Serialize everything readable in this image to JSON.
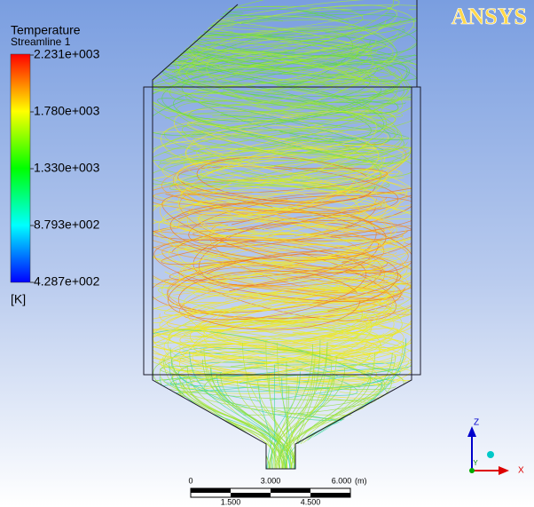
{
  "legend": {
    "title": "Temperature",
    "subtitle": "Streamline 1",
    "labels": [
      "2.231e+003",
      "1.780e+003",
      "1.330e+003",
      "8.793e+002",
      "4.287e+002"
    ],
    "unit": "[K]"
  },
  "logo": "ANSYS",
  "scale_bar": {
    "top_labels": [
      "0",
      "3.000",
      "6.000"
    ],
    "unit": "(m)",
    "bottom_labels": [
      "1.500",
      "4.500"
    ]
  },
  "triad": {
    "z": "Z",
    "y": "Y",
    "x": "X"
  }
}
